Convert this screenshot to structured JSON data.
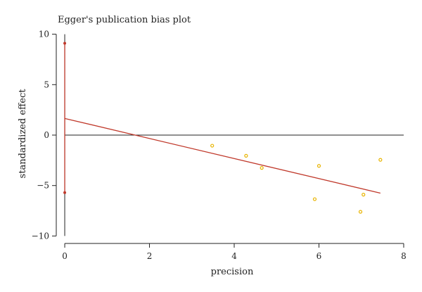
{
  "chart_data": {
    "type": "scatter",
    "title": "Egger's publication bias plot",
    "xlabel": "precision",
    "ylabel": "standardized effect",
    "xlim": [
      -0.2,
      8.1
    ],
    "ylim": [
      -10.6,
      10.6
    ],
    "x_ticks": [
      0,
      2,
      4,
      6,
      8
    ],
    "y_ticks": [
      10,
      5,
      0,
      -5,
      -10
    ],
    "x_tick_labels": [
      "0",
      "2",
      "4",
      "6",
      "8"
    ],
    "y_tick_labels": [
      "10",
      "5",
      "0",
      "−5",
      "−10"
    ],
    "grid": false,
    "points": [
      {
        "x": 3.48,
        "y": -1.05
      },
      {
        "x": 4.28,
        "y": -2.05
      },
      {
        "x": 4.65,
        "y": -3.25
      },
      {
        "x": 5.9,
        "y": -6.35
      },
      {
        "x": 6.0,
        "y": -3.05
      },
      {
        "x": 6.98,
        "y": -7.6
      },
      {
        "x": 7.05,
        "y": -5.9
      },
      {
        "x": 7.45,
        "y": -2.45
      }
    ],
    "regression_line": {
      "x": [
        0,
        7.45
      ],
      "y": [
        1.65,
        -5.75
      ]
    },
    "zero_line_y": 0,
    "intercept_ci": {
      "x": 0,
      "lower": -5.7,
      "upper": 9.1
    },
    "colors": {
      "points": "#e8b400",
      "regression": "#c0392b",
      "ci": "#c0392b",
      "axis": "#222222"
    }
  }
}
